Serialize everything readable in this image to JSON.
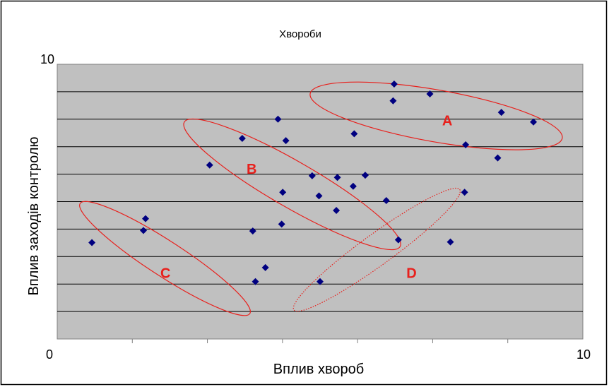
{
  "chart_data": {
    "type": "scatter",
    "title": "Хвороби",
    "xlabel": "Вплив хвороб",
    "ylabel": "Вплив заходів контролю",
    "xlim": [
      0,
      10
    ],
    "ylim": [
      0,
      10
    ],
    "x_tick_labels": [
      "0",
      "10"
    ],
    "y_tick_labels": [
      "10"
    ],
    "grid": "horizontal",
    "plot_background": "#C0C0C0",
    "marker_color": "#000080",
    "cluster_color": "#E8201C",
    "points": [
      {
        "x": 0.66,
        "y": 3.51
      },
      {
        "x": 1.64,
        "y": 3.95
      },
      {
        "x": 1.68,
        "y": 4.38
      },
      {
        "x": 2.9,
        "y": 6.33
      },
      {
        "x": 3.52,
        "y": 7.3
      },
      {
        "x": 3.72,
        "y": 3.93
      },
      {
        "x": 3.77,
        "y": 2.09
      },
      {
        "x": 3.96,
        "y": 2.6
      },
      {
        "x": 4.2,
        "y": 8.0
      },
      {
        "x": 4.27,
        "y": 4.18
      },
      {
        "x": 4.29,
        "y": 5.34
      },
      {
        "x": 4.35,
        "y": 7.22
      },
      {
        "x": 4.85,
        "y": 5.94
      },
      {
        "x": 4.98,
        "y": 5.21
      },
      {
        "x": 5.0,
        "y": 2.09
      },
      {
        "x": 5.31,
        "y": 4.68
      },
      {
        "x": 5.33,
        "y": 5.88
      },
      {
        "x": 5.63,
        "y": 5.56
      },
      {
        "x": 5.65,
        "y": 7.47
      },
      {
        "x": 5.86,
        "y": 5.96
      },
      {
        "x": 6.26,
        "y": 5.04
      },
      {
        "x": 6.39,
        "y": 8.67
      },
      {
        "x": 6.41,
        "y": 9.28
      },
      {
        "x": 6.49,
        "y": 3.61
      },
      {
        "x": 7.09,
        "y": 8.92
      },
      {
        "x": 7.48,
        "y": 3.53
      },
      {
        "x": 7.75,
        "y": 5.34
      },
      {
        "x": 7.77,
        "y": 7.07
      },
      {
        "x": 8.38,
        "y": 6.59
      },
      {
        "x": 8.45,
        "y": 8.25
      },
      {
        "x": 9.06,
        "y": 7.9
      }
    ],
    "clusters": [
      {
        "label": "A",
        "style": "solid",
        "cx": 7.21,
        "cy": 8.12,
        "rx": 4.87,
        "ry": 1.89,
        "rotate": 10,
        "label_x": 7.42,
        "label_y": 7.95
      },
      {
        "label": "B",
        "style": "solid",
        "cx": 4.47,
        "cy": 5.63,
        "rx": 4.74,
        "ry": 1.67,
        "rotate": 30,
        "label_x": 3.7,
        "label_y": 6.2
      },
      {
        "label": "C",
        "style": "solid",
        "cx": 2.05,
        "cy": 2.93,
        "rx": 3.85,
        "ry": 1.28,
        "rotate": 33,
        "label_x": 2.06,
        "label_y": 2.4
      },
      {
        "label": "D",
        "style": "dotted",
        "cx": 6.08,
        "cy": 3.25,
        "rx": 3.9,
        "ry": 1.13,
        "rotate": -36,
        "label_x": 6.74,
        "label_y": 2.4
      }
    ]
  }
}
